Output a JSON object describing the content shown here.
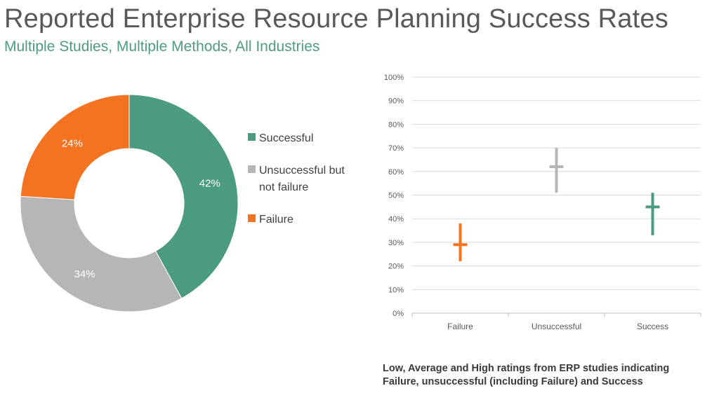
{
  "title": "Reported Enterprise Resource Planning Success Rates",
  "subtitle": "Multiple Studies, Multiple Methods, All Industries",
  "chart_data": [
    {
      "type": "pie",
      "variant": "donut",
      "slices": [
        {
          "label": "Successful",
          "value": 42,
          "value_label": "42%",
          "color": "#4a9b7f"
        },
        {
          "label": "Unsuccessful but not failure",
          "value": 34,
          "value_label": "34%",
          "color": "#b6b6b6"
        },
        {
          "label": "Failure",
          "value": 24,
          "value_label": "24%",
          "color": "#f47321"
        }
      ],
      "legend_position": "right",
      "legend_lines": {
        "Successful": [
          "Successful"
        ],
        "Unsuccessful but not failure": [
          "Unsuccessful but",
          "not failure"
        ],
        "Failure": [
          "Failure"
        ]
      }
    },
    {
      "type": "high-low-average",
      "categories": [
        "Failure",
        "Unsuccessful",
        "Success"
      ],
      "series": [
        {
          "category": "Failure",
          "low": 22,
          "average": 29,
          "high": 38,
          "color": "#f47321"
        },
        {
          "category": "Unsuccessful",
          "low": 51,
          "average": 62,
          "high": 70,
          "color": "#b6b6b6"
        },
        {
          "category": "Success",
          "low": 33,
          "average": 45,
          "high": 51,
          "color": "#4a9b7f"
        }
      ],
      "ylim": [
        0,
        100
      ],
      "yticks": [
        "0%",
        "10%",
        "20%",
        "30%",
        "40%",
        "50%",
        "60%",
        "70%",
        "80%",
        "90%",
        "100%"
      ],
      "grid": true,
      "caption": [
        "Low, Average and High ratings from ERP studies indicating",
        "Failure, unsuccessful (including Failure) and Success"
      ]
    }
  ]
}
